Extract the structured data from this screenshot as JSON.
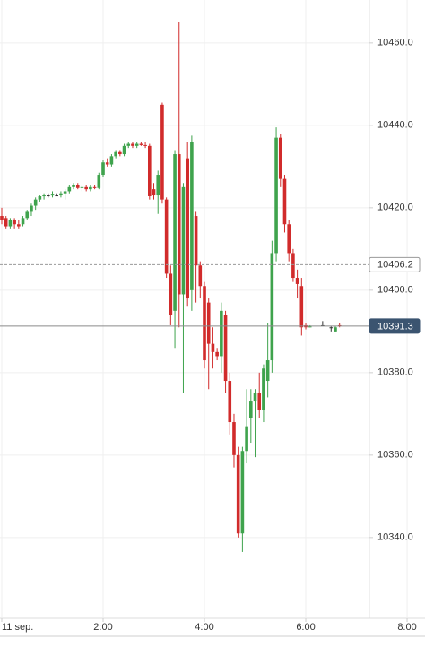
{
  "chart_data": {
    "type": "candlestick",
    "up_color": "#3fa34d",
    "down_color": "#d12b2b",
    "doji_color": "#333333",
    "grid": true,
    "xlim": [
      -2.12,
      501.2
    ],
    "ylim": [
      10320.4,
      10470.4
    ],
    "xticks": [
      {
        "value": 0,
        "label": "11 sep."
      },
      {
        "value": 120,
        "label": "2:00"
      },
      {
        "value": 240,
        "label": "4:00"
      },
      {
        "value": 360,
        "label": "6:00"
      },
      {
        "value": 480,
        "label": "8:00"
      }
    ],
    "yticks": [
      {
        "value": 10340,
        "label": "10340.0"
      },
      {
        "value": 10360,
        "label": "10360.0"
      },
      {
        "value": 10380,
        "label": "10380.0"
      },
      {
        "value": 10400,
        "label": "10400.0"
      },
      {
        "value": 10420,
        "label": "10420.0"
      },
      {
        "value": 10440,
        "label": "10440.0"
      },
      {
        "value": 10460,
        "label": "10460.0"
      }
    ],
    "price_lines": [
      {
        "value": 10406.2,
        "style": "dashed"
      },
      {
        "value": 10391.3,
        "style": "solid"
      }
    ],
    "x": [
      0,
      5,
      10,
      15,
      20,
      25,
      30,
      35,
      40,
      45,
      50,
      55,
      60,
      65,
      70,
      75,
      80,
      85,
      90,
      95,
      100,
      105,
      110,
      115,
      120,
      125,
      130,
      135,
      140,
      145,
      150,
      155,
      160,
      165,
      170,
      175,
      180,
      185,
      190,
      195,
      200,
      205,
      210,
      215,
      220,
      225,
      230,
      235,
      240,
      245,
      250,
      255,
      260,
      265,
      270,
      275,
      280,
      285,
      290,
      295,
      300,
      305,
      310,
      315,
      320,
      325,
      330,
      335,
      340,
      345,
      350,
      355,
      360,
      365,
      380,
      390,
      395,
      400
    ],
    "open": [
      10418,
      10417.5,
      10415.5,
      10417,
      10416,
      10416,
      10417.5,
      10419,
      10420.5,
      10422,
      10422.8,
      10423,
      10423,
      10423,
      10423,
      10423.5,
      10424,
      10425,
      10425.5,
      10424.8,
      10425,
      10424.5,
      10425,
      10424.8,
      10428,
      10431,
      10430.5,
      10432.5,
      10433.5,
      10433,
      10435,
      10435.5,
      10435,
      10435.5,
      10435.2,
      10435,
      10424.5,
      10423,
      10445,
      10422,
      10404,
      10395,
      10433,
      10399,
      10432,
      10400,
      10418,
      10406,
      10401,
      10397,
      10387,
      10385,
      10384,
      10394,
      10378,
      10368,
      10360,
      10341,
      10361,
      10369,
      10373,
      10375,
      10371,
      10378,
      10383,
      10409,
      10437,
      10427,
      10416,
      10409,
      10403,
      10401,
      10391.5,
      10391,
      10391.5,
      10391,
      10390,
      10391.5
    ],
    "high": [
      10420,
      10418,
      10417.5,
      10417.5,
      10417,
      10418,
      10419.5,
      10421,
      10422.5,
      10423,
      10423.5,
      10423.5,
      10424,
      10423.5,
      10424,
      10424.5,
      10425.5,
      10426,
      10426,
      10425.5,
      10425.5,
      10425.5,
      10425.5,
      10428.5,
      10431.5,
      10432,
      10433,
      10434,
      10434,
      10435.5,
      10436,
      10436,
      10436,
      10436,
      10436,
      10435.5,
      10426,
      10429,
      10445.5,
      10422.5,
      10406,
      10434,
      10465,
      10426,
      10436,
      10437.5,
      10419,
      10407,
      10402,
      10398,
      10391,
      10386,
      10397,
      10395,
      10380,
      10370,
      10362,
      10362,
      10376,
      10376,
      10376,
      10380,
      10382,
      10392,
      10412,
      10439.5,
      10438,
      10428,
      10417,
      10410,
      10405,
      10403,
      10392,
      10391.5,
      10392.5,
      10391.2,
      10391.3,
      10392
    ],
    "low": [
      10416,
      10415,
      10415,
      10415,
      10415,
      10415.5,
      10417,
      10418,
      10419.5,
      10421.5,
      10422,
      10422.5,
      10422.5,
      10422.8,
      10422.5,
      10422,
      10423.5,
      10424.5,
      10424.5,
      10424,
      10424,
      10424,
      10424.5,
      10424.5,
      10427.5,
      10430,
      10430,
      10432,
      10432.5,
      10432.5,
      10434.5,
      10434.5,
      10434.5,
      10435,
      10434.5,
      10422,
      10422,
      10418.5,
      10421,
      10403,
      10391.5,
      10386,
      10391,
      10375,
      10396,
      10395,
      10397,
      10398,
      10381,
      10376,
      10381,
      10383,
      10380,
      10375,
      10365,
      10357,
      10340,
      10336.5,
      10358,
      10363,
      10359.5,
      10369,
      10368,
      10374,
      10380,
      10407,
      10425,
      10414,
      10407,
      10402,
      10398,
      10389,
      10390.5,
      10391,
      10391.5,
      10390,
      10389.8,
      10391
    ],
    "close": [
      10417,
      10415.5,
      10417,
      10416,
      10415.5,
      10417.5,
      10419,
      10420.5,
      10422,
      10422.8,
      10423,
      10423,
      10423.2,
      10423,
      10423.5,
      10424,
      10425,
      10425.5,
      10424.8,
      10425,
      10424.5,
      10425,
      10424.8,
      10428,
      10431,
      10430.5,
      10432.5,
      10433.5,
      10433,
      10435,
      10435.5,
      10435,
      10435.5,
      10435.2,
      10435,
      10422.8,
      10423,
      10428,
      10422,
      10404,
      10394,
      10433,
      10399,
      10425,
      10398,
      10436,
      10406,
      10401,
      10383,
      10387,
      10385,
      10384,
      10395,
      10378,
      10368,
      10360,
      10341,
      10361,
      10367,
      10373,
      10375,
      10371,
      10381,
      10383,
      10409,
      10437,
      10427,
      10416,
      10409,
      10403,
      10401.5,
      10391,
      10391,
      10391.2,
      10391.5,
      10391,
      10391,
      10391.3
    ]
  }
}
